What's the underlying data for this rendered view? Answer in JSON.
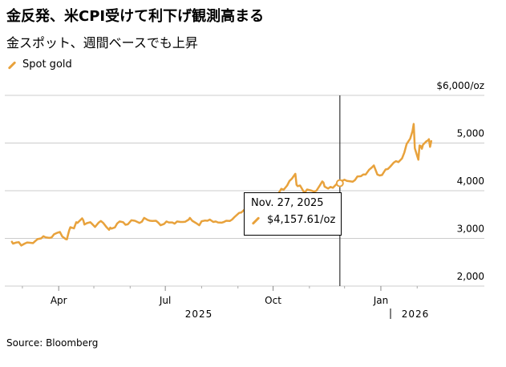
{
  "header": {
    "title": "金反発、米CPI受けて利下げ観測高まる",
    "subtitle": "金スポット、週間ベースでも上昇"
  },
  "legend": {
    "label": "Spot gold"
  },
  "colors": {
    "accent": "#e8a23c",
    "grid": "#cccccc",
    "crosshair": "#333333"
  },
  "tooltip": {
    "date": "Nov. 27, 2025",
    "value": "$4,157.61/oz"
  },
  "source": "Source: Bloomberg",
  "chart_data": {
    "type": "line",
    "series": [
      {
        "name": "Spot gold",
        "points": [
          [
            "2025-02-20",
            2930
          ],
          [
            "2025-02-21",
            2890
          ],
          [
            "2025-02-24",
            2915
          ],
          [
            "2025-02-26",
            2920
          ],
          [
            "2025-02-28",
            2850
          ],
          [
            "2025-03-03",
            2890
          ],
          [
            "2025-03-05",
            2915
          ],
          [
            "2025-03-07",
            2910
          ],
          [
            "2025-03-10",
            2900
          ],
          [
            "2025-03-12",
            2945
          ],
          [
            "2025-03-14",
            2985
          ],
          [
            "2025-03-17",
            3000
          ],
          [
            "2025-03-19",
            3045
          ],
          [
            "2025-03-21",
            3020
          ],
          [
            "2025-03-24",
            3010
          ],
          [
            "2025-03-26",
            3020
          ],
          [
            "2025-03-28",
            3085
          ],
          [
            "2025-03-31",
            3120
          ],
          [
            "2025-04-02",
            3135
          ],
          [
            "2025-04-04",
            3040
          ],
          [
            "2025-04-07",
            2985
          ],
          [
            "2025-04-08",
            2980
          ],
          [
            "2025-04-09",
            3080
          ],
          [
            "2025-04-10",
            3175
          ],
          [
            "2025-04-11",
            3235
          ],
          [
            "2025-04-14",
            3210
          ],
          [
            "2025-04-16",
            3340
          ],
          [
            "2025-04-17",
            3325
          ],
          [
            "2025-04-21",
            3420
          ],
          [
            "2025-04-22",
            3380
          ],
          [
            "2025-04-23",
            3290
          ],
          [
            "2025-04-25",
            3320
          ],
          [
            "2025-04-28",
            3340
          ],
          [
            "2025-04-30",
            3290
          ],
          [
            "2025-05-02",
            3240
          ],
          [
            "2025-05-05",
            3330
          ],
          [
            "2025-05-07",
            3365
          ],
          [
            "2025-05-09",
            3325
          ],
          [
            "2025-05-12",
            3230
          ],
          [
            "2025-05-14",
            3180
          ],
          [
            "2025-05-15",
            3225
          ],
          [
            "2025-05-16",
            3205
          ],
          [
            "2025-05-19",
            3230
          ],
          [
            "2025-05-21",
            3315
          ],
          [
            "2025-05-23",
            3355
          ],
          [
            "2025-05-26",
            3340
          ],
          [
            "2025-05-28",
            3285
          ],
          [
            "2025-05-30",
            3295
          ],
          [
            "2025-06-02",
            3380
          ],
          [
            "2025-06-05",
            3370
          ],
          [
            "2025-06-09",
            3325
          ],
          [
            "2025-06-11",
            3350
          ],
          [
            "2025-06-13",
            3430
          ],
          [
            "2025-06-16",
            3385
          ],
          [
            "2025-06-18",
            3370
          ],
          [
            "2025-06-20",
            3365
          ],
          [
            "2025-06-23",
            3370
          ],
          [
            "2025-06-25",
            3330
          ],
          [
            "2025-06-27",
            3275
          ],
          [
            "2025-06-30",
            3305
          ],
          [
            "2025-07-02",
            3355
          ],
          [
            "2025-07-04",
            3335
          ],
          [
            "2025-07-07",
            3335
          ],
          [
            "2025-07-09",
            3310
          ],
          [
            "2025-07-11",
            3355
          ],
          [
            "2025-07-14",
            3345
          ],
          [
            "2025-07-16",
            3345
          ],
          [
            "2025-07-18",
            3350
          ],
          [
            "2025-07-21",
            3395
          ],
          [
            "2025-07-22",
            3430
          ],
          [
            "2025-07-24",
            3370
          ],
          [
            "2025-07-28",
            3310
          ],
          [
            "2025-07-30",
            3275
          ],
          [
            "2025-08-01",
            3360
          ],
          [
            "2025-08-04",
            3375
          ],
          [
            "2025-08-06",
            3370
          ],
          [
            "2025-08-08",
            3395
          ],
          [
            "2025-08-11",
            3345
          ],
          [
            "2025-08-13",
            3355
          ],
          [
            "2025-08-15",
            3335
          ],
          [
            "2025-08-18",
            3330
          ],
          [
            "2025-08-20",
            3345
          ],
          [
            "2025-08-22",
            3370
          ],
          [
            "2025-08-25",
            3365
          ],
          [
            "2025-08-27",
            3395
          ],
          [
            "2025-08-29",
            3445
          ],
          [
            "2025-09-02",
            3535
          ],
          [
            "2025-09-04",
            3545
          ],
          [
            "2025-09-08",
            3635
          ],
          [
            "2025-09-10",
            3640
          ],
          [
            "2025-09-12",
            3645
          ],
          [
            "2025-09-16",
            3690
          ],
          [
            "2025-09-18",
            3645
          ],
          [
            "2025-09-22",
            3745
          ],
          [
            "2025-09-24",
            3735
          ],
          [
            "2025-09-26",
            3760
          ],
          [
            "2025-09-30",
            3860
          ],
          [
            "2025-10-02",
            3855
          ],
          [
            "2025-10-06",
            3960
          ],
          [
            "2025-10-08",
            4040
          ],
          [
            "2025-10-10",
            4020
          ],
          [
            "2025-10-13",
            4110
          ],
          [
            "2025-10-15",
            4205
          ],
          [
            "2025-10-17",
            4250
          ],
          [
            "2025-10-20",
            4355
          ],
          [
            "2025-10-21",
            4125
          ],
          [
            "2025-10-22",
            4095
          ],
          [
            "2025-10-24",
            4110
          ],
          [
            "2025-10-27",
            3985
          ],
          [
            "2025-10-28",
            3955
          ],
          [
            "2025-10-30",
            4025
          ],
          [
            "2025-11-03",
            4000
          ],
          [
            "2025-11-05",
            3980
          ],
          [
            "2025-11-07",
            4000
          ],
          [
            "2025-11-10",
            4115
          ],
          [
            "2025-11-12",
            4195
          ],
          [
            "2025-11-13",
            4170
          ],
          [
            "2025-11-14",
            4085
          ],
          [
            "2025-11-17",
            4045
          ],
          [
            "2025-11-19",
            4080
          ],
          [
            "2025-11-21",
            4060
          ],
          [
            "2025-11-24",
            4135
          ],
          [
            "2025-11-26",
            4165
          ],
          [
            "2025-11-27",
            4157.61
          ],
          [
            "2025-11-28",
            4200
          ],
          [
            "2025-12-01",
            4230
          ],
          [
            "2025-12-03",
            4205
          ],
          [
            "2025-12-05",
            4200
          ],
          [
            "2025-12-08",
            4190
          ],
          [
            "2025-12-10",
            4225
          ],
          [
            "2025-12-12",
            4300
          ],
          [
            "2025-12-15",
            4305
          ],
          [
            "2025-12-17",
            4340
          ],
          [
            "2025-12-19",
            4340
          ],
          [
            "2025-12-22",
            4440
          ],
          [
            "2025-12-24",
            4480
          ],
          [
            "2025-12-26",
            4530
          ],
          [
            "2025-12-29",
            4340
          ],
          [
            "2025-12-31",
            4320
          ],
          [
            "2026-01-02",
            4330
          ],
          [
            "2026-01-05",
            4445
          ],
          [
            "2026-01-07",
            4455
          ],
          [
            "2026-01-09",
            4505
          ],
          [
            "2026-01-12",
            4590
          ],
          [
            "2026-01-14",
            4620
          ],
          [
            "2026-01-16",
            4600
          ],
          [
            "2026-01-19",
            4675
          ],
          [
            "2026-01-21",
            4800
          ],
          [
            "2026-01-23",
            4980
          ],
          [
            "2026-01-26",
            5090
          ],
          [
            "2026-01-28",
            5250
          ],
          [
            "2026-01-29",
            5400
          ],
          [
            "2026-01-30",
            4890
          ],
          [
            "2026-02-02",
            4650
          ],
          [
            "2026-02-03",
            4950
          ],
          [
            "2026-02-04",
            4940
          ],
          [
            "2026-02-05",
            4880
          ],
          [
            "2026-02-06",
            4965
          ],
          [
            "2026-02-09",
            5040
          ],
          [
            "2026-02-10",
            5050
          ],
          [
            "2026-02-11",
            5080
          ],
          [
            "2026-02-12",
            4920
          ],
          [
            "2026-02-13",
            5040
          ]
        ]
      }
    ],
    "x_ticks": [
      "Apr",
      "Jul",
      "Oct",
      "Jan"
    ],
    "x_tick_dates": [
      "2025-04-01",
      "2025-07-01",
      "2025-10-01",
      "2026-01-01"
    ],
    "year_labels": [
      "2025",
      "2026"
    ],
    "y_ticks": [
      "$6,000/oz",
      "5,000",
      "4,000",
      "3,000",
      "2,000"
    ],
    "y_tick_values": [
      6000,
      5000,
      4000,
      3000,
      2000
    ],
    "xlim": [
      "2025-02-14",
      "2026-02-20"
    ],
    "ylim": [
      2000,
      6000
    ],
    "grid": true,
    "legend_placement": "top-left",
    "highlight": {
      "date": "2025-11-27",
      "value": 4157.61
    }
  }
}
